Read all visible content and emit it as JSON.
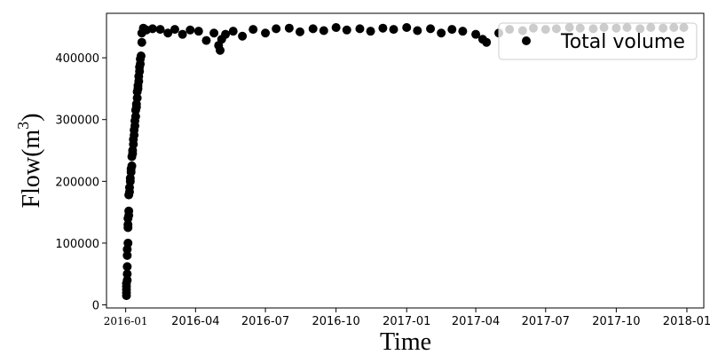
{
  "chart_data": {
    "type": "scatter",
    "xlabel": "Time",
    "ylabel_base": "Flow(m",
    "ylabel_sup": "3",
    "ylabel_close": ")",
    "xlim": [
      "2015-12-07",
      "2018-01-23"
    ],
    "ylim": [
      -5000,
      472000
    ],
    "x_ticks": [
      {
        "date": "2016-01-01",
        "label": "2016-01"
      },
      {
        "date": "2016-04-01",
        "label": "2016-04"
      },
      {
        "date": "2016-07-01",
        "label": "2016-07"
      },
      {
        "date": "2016-10-01",
        "label": "2016-10"
      },
      {
        "date": "2017-01-01",
        "label": "2017-01"
      },
      {
        "date": "2017-04-01",
        "label": "2017-04"
      },
      {
        "date": "2017-07-01",
        "label": "2017-07"
      },
      {
        "date": "2017-10-01",
        "label": "2017-10"
      },
      {
        "date": "2018-01-01",
        "label": "2018-01"
      }
    ],
    "y_ticks": [
      {
        "value": 0,
        "label": "0"
      },
      {
        "value": 100000,
        "label": "100000"
      },
      {
        "value": 200000,
        "label": "200000"
      },
      {
        "value": 300000,
        "label": "300000"
      },
      {
        "value": 400000,
        "label": "400000"
      }
    ],
    "legend": {
      "placement": "top-right",
      "label": "Total volume"
    },
    "grid": false,
    "marker_color": "#000000",
    "series": [
      {
        "name": "Total volume",
        "x": [
          "2016-01-02",
          "2016-01-02",
          "2016-01-02",
          "2016-01-02",
          "2016-01-02",
          "2016-01-03",
          "2016-01-03",
          "2016-01-03",
          "2016-01-03",
          "2016-01-03",
          "2016-01-04",
          "2016-01-04",
          "2016-01-04",
          "2016-01-04",
          "2016-01-05",
          "2016-01-05",
          "2016-01-05",
          "2016-01-06",
          "2016-01-06",
          "2016-01-07",
          "2016-01-07",
          "2016-01-08",
          "2016-01-08",
          "2016-01-09",
          "2016-01-09",
          "2016-01-10",
          "2016-01-10",
          "2016-01-11",
          "2016-01-11",
          "2016-01-12",
          "2016-01-12",
          "2016-01-13",
          "2016-01-13",
          "2016-01-14",
          "2016-01-14",
          "2016-01-15",
          "2016-01-15",
          "2016-01-16",
          "2016-01-16",
          "2016-01-17",
          "2016-01-17",
          "2016-01-18",
          "2016-01-18",
          "2016-01-19",
          "2016-01-19",
          "2016-01-20",
          "2016-01-20",
          "2016-01-21",
          "2016-01-22",
          "2016-01-22",
          "2016-01-24",
          "2016-01-28",
          "2016-02-05",
          "2016-02-15",
          "2016-02-25",
          "2016-03-05",
          "2016-03-15",
          "2016-03-25",
          "2016-04-05",
          "2016-04-15",
          "2016-04-25",
          "2016-05-01",
          "2016-05-03",
          "2016-05-05",
          "2016-05-10",
          "2016-05-20",
          "2016-06-01",
          "2016-06-15",
          "2016-07-01",
          "2016-07-15",
          "2016-08-01",
          "2016-08-15",
          "2016-09-01",
          "2016-09-15",
          "2016-10-01",
          "2016-10-15",
          "2016-11-01",
          "2016-11-15",
          "2016-12-01",
          "2016-12-15",
          "2017-01-01",
          "2017-01-15",
          "2017-02-01",
          "2017-02-15",
          "2017-03-01",
          "2017-03-15",
          "2017-04-01",
          "2017-04-10",
          "2017-04-15",
          "2017-05-01",
          "2017-05-15",
          "2017-06-01",
          "2017-06-15",
          "2017-07-01",
          "2017-07-15",
          "2017-08-01",
          "2017-08-15",
          "2017-09-01",
          "2017-09-15",
          "2017-10-01",
          "2017-10-15",
          "2017-11-01",
          "2017-11-15",
          "2017-12-01",
          "2017-12-15",
          "2017-12-28"
        ],
        "y": [
          15000,
          20000,
          25000,
          30000,
          35000,
          40000,
          50000,
          62000,
          80000,
          90000,
          100000,
          125000,
          130000,
          140000,
          145000,
          152000,
          178000,
          183000,
          190000,
          200000,
          205000,
          215000,
          220000,
          225000,
          240000,
          245000,
          250000,
          260000,
          268000,
          275000,
          283000,
          290000,
          298000,
          305000,
          315000,
          320000,
          325000,
          335000,
          345000,
          350000,
          355000,
          362000,
          370000,
          378000,
          385000,
          390000,
          398000,
          403000,
          425000,
          440000,
          448000,
          445000,
          447000,
          446000,
          440000,
          446000,
          438000,
          445000,
          443000,
          428000,
          440000,
          420000,
          412000,
          430000,
          438000,
          443000,
          435000,
          446000,
          440000,
          447000,
          448000,
          442000,
          447000,
          444000,
          449000,
          445000,
          447000,
          443000,
          448000,
          446000,
          449000,
          444000,
          447000,
          440000,
          446000,
          443000,
          438000,
          430000,
          425000,
          440000,
          446000,
          444000,
          448000,
          446000,
          447000,
          449000,
          448000,
          447000,
          449000,
          448000,
          449000,
          447000,
          449000,
          448000,
          449000,
          449000
        ]
      }
    ]
  }
}
